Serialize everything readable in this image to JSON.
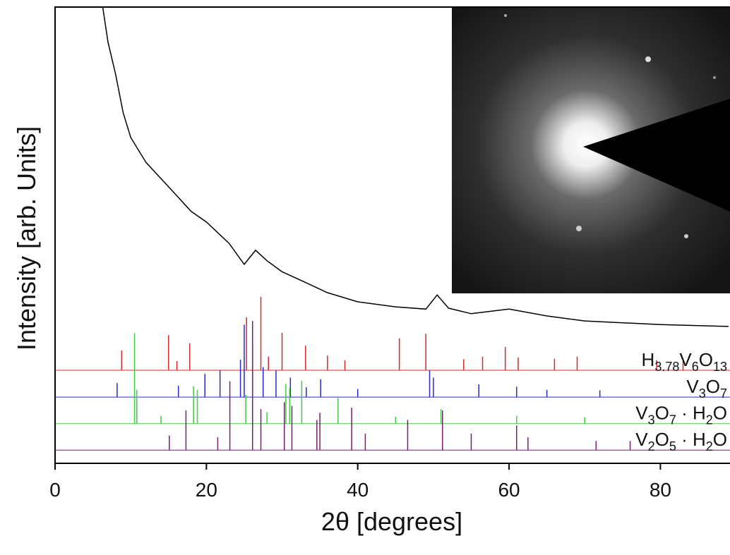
{
  "chart_data": {
    "type": "xrd",
    "xlabel": "2θ [degrees]",
    "ylabel": "Intensity [arb. Units]",
    "xlim": [
      0,
      89.2
    ],
    "ylim": [
      0,
      100
    ],
    "xticks": [
      0,
      20,
      40,
      60,
      80
    ],
    "color": "#000000",
    "x": [
      6.3,
      7,
      8,
      9,
      10,
      12,
      15,
      18,
      20,
      23,
      25,
      26.5,
      28,
      30,
      33,
      36,
      40,
      45,
      49,
      50.5,
      52,
      55,
      60,
      65,
      70,
      80,
      89
    ],
    "values": [
      100,
      92.3,
      85.3,
      76.8,
      71.4,
      66.0,
      60.6,
      55.2,
      52.9,
      48.2,
      43.6,
      46.7,
      44.4,
      42.0,
      39.7,
      37.4,
      35.4,
      34.3,
      33.8,
      36.9,
      34.0,
      32.8,
      33.8,
      32.3,
      31.2,
      30.4,
      30.0
    ],
    "reference_patterns": [
      {
        "name": "H3.78V6O13",
        "color": "#d42a2a",
        "baseline": 20.4,
        "x": [
          8.8,
          15,
          16.1,
          17.8,
          25.3,
          27.2,
          28.2,
          30,
          33.1,
          36,
          38.3,
          45.5,
          49,
          54,
          56.5,
          59.5,
          61.2,
          66,
          69,
          79.5,
          83
        ],
        "values": [
          4.3,
          7.7,
          2.0,
          5.9,
          11.6,
          16.1,
          3.0,
          8.2,
          5.4,
          3.2,
          2.2,
          7.0,
          8.0,
          2.4,
          3.0,
          5.1,
          2.8,
          2.5,
          3.0,
          2.2,
          2.0
        ]
      },
      {
        "name": "V3O7",
        "color": "#2a2ad4",
        "baseline": 14.5,
        "x": [
          8.2,
          16.3,
          19.8,
          21.8,
          24.5,
          25.0,
          26.1,
          27.5,
          29.2,
          31.1,
          33.2,
          35.1,
          40,
          49.5,
          50,
          56,
          61,
          65,
          72
        ],
        "values": [
          3.1,
          2.5,
          5.1,
          5.9,
          8.2,
          15.9,
          12.1,
          6.6,
          5.9,
          4.3,
          2.2,
          3.9,
          1.8,
          5.9,
          4.3,
          2.8,
          2.3,
          1.6,
          1.5
        ]
      },
      {
        "name": "V3O7 · H2O",
        "color": "#44cc44",
        "baseline": 8.7,
        "x": [
          10.5,
          10.8,
          14,
          18.3,
          18.8,
          25.2,
          26.1,
          28,
          30.5,
          31,
          32.6,
          37.4,
          45,
          51,
          61,
          70
        ],
        "values": [
          19.8,
          7.4,
          1.7,
          8.2,
          7.4,
          6.3,
          14.8,
          2.5,
          8.7,
          7.9,
          9.4,
          5.6,
          1.5,
          3.2,
          1.7,
          1.4
        ]
      },
      {
        "name": "V2O5 · H2O",
        "color": "#7a1a7a",
        "baseline": 2.9,
        "x": [
          15.1,
          17.3,
          21.5,
          23.1,
          26.1,
          27.2,
          30.3,
          31.3,
          34.6,
          35,
          39.2,
          41,
          46.6,
          51.2,
          55,
          61,
          62.5,
          71.5,
          76
        ],
        "values": [
          3.2,
          8.7,
          2.8,
          15.1,
          28.3,
          9.0,
          10.5,
          9.7,
          6.6,
          8.2,
          9.3,
          3.6,
          6.6,
          8.7,
          3.6,
          5.4,
          2.8,
          2.0,
          2.0
        ]
      }
    ]
  }
}
